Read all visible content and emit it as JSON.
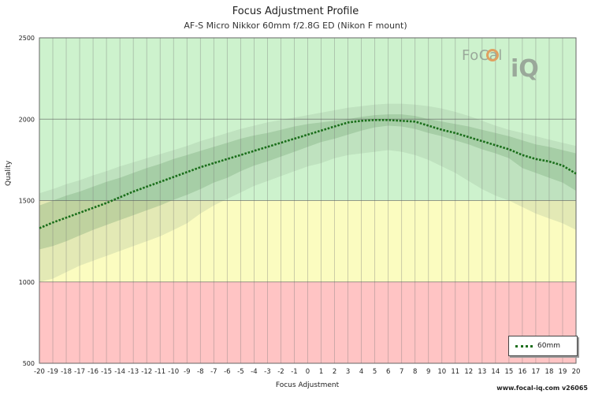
{
  "chart_data": {
    "type": "line",
    "title": "Focus Adjustment Profile",
    "subtitle": "AF-S Micro Nikkor 60mm f/2.8G ED (Nikon F mount)",
    "xlabel": "Focus Adjustment",
    "ylabel": "Quality",
    "xlim": [
      -20,
      20
    ],
    "ylim": [
      500,
      2500
    ],
    "x_ticks": [
      -20,
      -19,
      -18,
      -17,
      -16,
      -15,
      -14,
      -13,
      -12,
      -11,
      -10,
      -9,
      -8,
      -7,
      -6,
      -5,
      -4,
      -3,
      -2,
      -1,
      0,
      1,
      2,
      3,
      4,
      5,
      6,
      7,
      8,
      9,
      10,
      11,
      12,
      13,
      14,
      15,
      16,
      17,
      18,
      19,
      20
    ],
    "y_ticks": [
      500,
      1000,
      1500,
      2000,
      2500
    ],
    "grid": true,
    "legend_position": "bottom-right",
    "zones": [
      {
        "from": 500,
        "to": 1000,
        "color": "#ffc4c4"
      },
      {
        "from": 1000,
        "to": 1500,
        "color": "#fbfcc0"
      },
      {
        "from": 1500,
        "to": 2500,
        "color": "#cdf2cd"
      }
    ],
    "x": [
      -20,
      -19,
      -18,
      -17,
      -16,
      -15,
      -14,
      -13,
      -12,
      -11,
      -10,
      -9,
      -8,
      -7,
      -6,
      -5,
      -4,
      -3,
      -2,
      -1,
      0,
      1,
      2,
      3,
      4,
      5,
      6,
      7,
      8,
      9,
      10,
      11,
      12,
      13,
      14,
      15,
      16,
      17,
      18,
      19,
      20
    ],
    "series": [
      {
        "name": "60mm",
        "color": "#1a6e1a",
        "values": [
          1330,
          1365,
          1395,
          1425,
          1455,
          1485,
          1520,
          1555,
          1585,
          1615,
          1645,
          1675,
          1705,
          1730,
          1755,
          1780,
          1805,
          1830,
          1855,
          1880,
          1905,
          1930,
          1955,
          1980,
          1990,
          1995,
          1995,
          1990,
          1985,
          1960,
          1935,
          1915,
          1890,
          1865,
          1840,
          1815,
          1780,
          1755,
          1740,
          1715,
          1665
        ]
      }
    ],
    "band_inner": {
      "upper": [
        1470,
        1500,
        1530,
        1555,
        1585,
        1615,
        1640,
        1670,
        1700,
        1725,
        1755,
        1780,
        1805,
        1830,
        1855,
        1880,
        1900,
        1915,
        1935,
        1955,
        1970,
        1980,
        1990,
        2000,
        2015,
        2025,
        2030,
        2030,
        2020,
        2000,
        1985,
        1970,
        1955,
        1935,
        1915,
        1895,
        1870,
        1845,
        1830,
        1810,
        1790
      ],
      "lower": [
        1200,
        1220,
        1250,
        1285,
        1320,
        1350,
        1380,
        1410,
        1440,
        1470,
        1505,
        1535,
        1570,
        1610,
        1640,
        1680,
        1715,
        1740,
        1770,
        1800,
        1830,
        1860,
        1880,
        1905,
        1930,
        1950,
        1960,
        1955,
        1940,
        1915,
        1895,
        1870,
        1845,
        1815,
        1790,
        1760,
        1700,
        1670,
        1640,
        1610,
        1560
      ]
    },
    "band_outer": {
      "upper": [
        1545,
        1570,
        1600,
        1625,
        1655,
        1680,
        1710,
        1735,
        1760,
        1785,
        1810,
        1835,
        1865,
        1890,
        1915,
        1940,
        1960,
        1980,
        1995,
        2010,
        2025,
        2040,
        2055,
        2070,
        2080,
        2090,
        2095,
        2095,
        2090,
        2080,
        2065,
        2045,
        2020,
        1990,
        1960,
        1935,
        1915,
        1895,
        1875,
        1855,
        1835
      ],
      "lower": [
        1000,
        1020,
        1060,
        1100,
        1130,
        1160,
        1190,
        1220,
        1250,
        1280,
        1320,
        1360,
        1420,
        1470,
        1510,
        1550,
        1590,
        1620,
        1650,
        1680,
        1710,
        1730,
        1760,
        1780,
        1790,
        1800,
        1810,
        1800,
        1780,
        1750,
        1710,
        1670,
        1620,
        1570,
        1530,
        1500,
        1460,
        1420,
        1390,
        1360,
        1320
      ]
    },
    "colors": {
      "inner_band": "rgba(110,160,110,0.30)",
      "outer_band": "rgba(140,170,140,0.22)",
      "gridline": "rgba(120,120,120,0.45)",
      "major_gridline": "rgba(90,90,90,0.6)"
    }
  },
  "legend": {
    "label": "60mm"
  },
  "logo": {
    "text1": "FoCal",
    "text2": "iQ"
  },
  "footer": {
    "text": "www.focal-iq.com  v26065"
  }
}
